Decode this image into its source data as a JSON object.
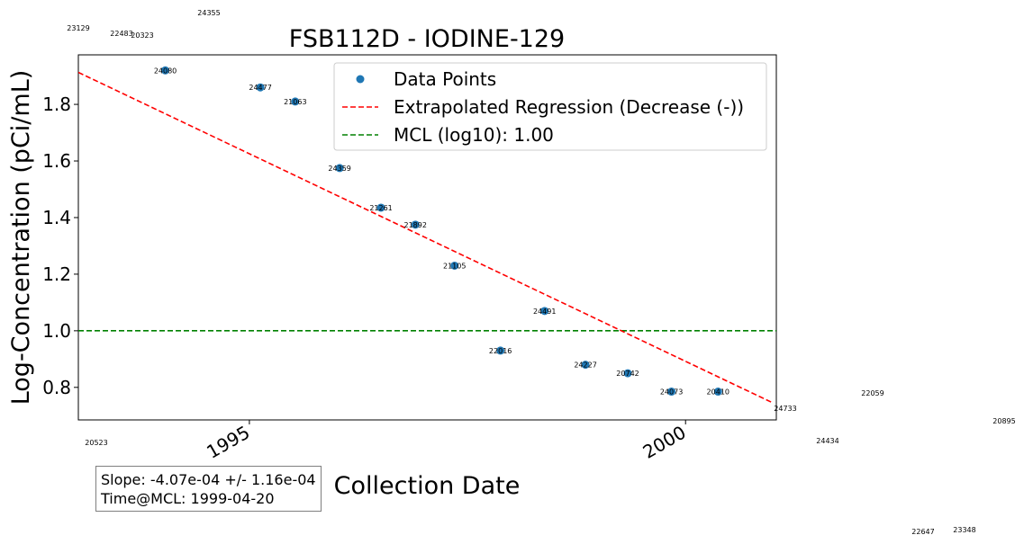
{
  "chart_data": {
    "type": "scatter",
    "title": "FSB112D - IODINE-129",
    "xlabel": "Collection Date",
    "ylabel": "Log-Concentration (pCi/mL)",
    "x_ticks": [
      "1995",
      "2000"
    ],
    "y_ticks": [
      "0.8",
      "1.0",
      "1.2",
      "1.4",
      "1.6",
      "1.8"
    ],
    "xlim": [
      "1993-01-15",
      "2001-01-15"
    ],
    "ylim": [
      0.685,
      1.975
    ],
    "legend": {
      "location": "top-right",
      "entries": [
        "Data Points",
        "Extrapolated Regression (Decrease (-))",
        "MCL (log10): 1.00"
      ]
    },
    "series": [
      {
        "name": "Data Points",
        "kind": "scatter",
        "color": "#1f77b4",
        "points": [
          {
            "x": "1994-01-14",
            "y": 1.92,
            "label": "24080"
          },
          {
            "x": "1995-02-16",
            "y": 1.86,
            "label": "24477"
          },
          {
            "x": "1995-07-12",
            "y": 1.81,
            "label": "21063"
          },
          {
            "x": "1996-01-14",
            "y": 1.575,
            "label": "24359"
          },
          {
            "x": "1996-07-05",
            "y": 1.435,
            "label": "21261"
          },
          {
            "x": "1996-11-26",
            "y": 1.375,
            "label": "21892"
          },
          {
            "x": "1997-05-09",
            "y": 1.23,
            "label": "21105"
          },
          {
            "x": "1997-11-17",
            "y": 0.93,
            "label": "22016"
          },
          {
            "x": "1998-05-21",
            "y": 1.07,
            "label": "24491"
          },
          {
            "x": "1998-11-08",
            "y": 0.88,
            "label": "24227"
          },
          {
            "x": "1999-05-04",
            "y": 0.85,
            "label": "20742"
          },
          {
            "x": "1999-11-03",
            "y": 0.785,
            "label": "24073"
          },
          {
            "x": "2000-05-16",
            "y": 0.785,
            "label": "20410"
          }
        ]
      },
      {
        "name": "Extrapolated Regression (Decrease (-))",
        "kind": "line",
        "color": "#ff0000",
        "dash": "dashed",
        "x": [
          "1993-01-15",
          "2001-01-01"
        ],
        "y": [
          1.913,
          0.745
        ]
      },
      {
        "name": "MCL (log10): 1.00",
        "kind": "hline",
        "color": "#008000",
        "dash": "dashed",
        "y": 1.0
      }
    ],
    "outside_labels": [
      "23129",
      "22483",
      "20323",
      "24355",
      "20523",
      "24733",
      "22059",
      "24434",
      "20895",
      "22647",
      "23348"
    ]
  },
  "stats": {
    "slope": "Slope: -4.07e-04 +/- 1.16e-04",
    "time_at_mcl": "Time@MCL: 1999-04-20"
  }
}
